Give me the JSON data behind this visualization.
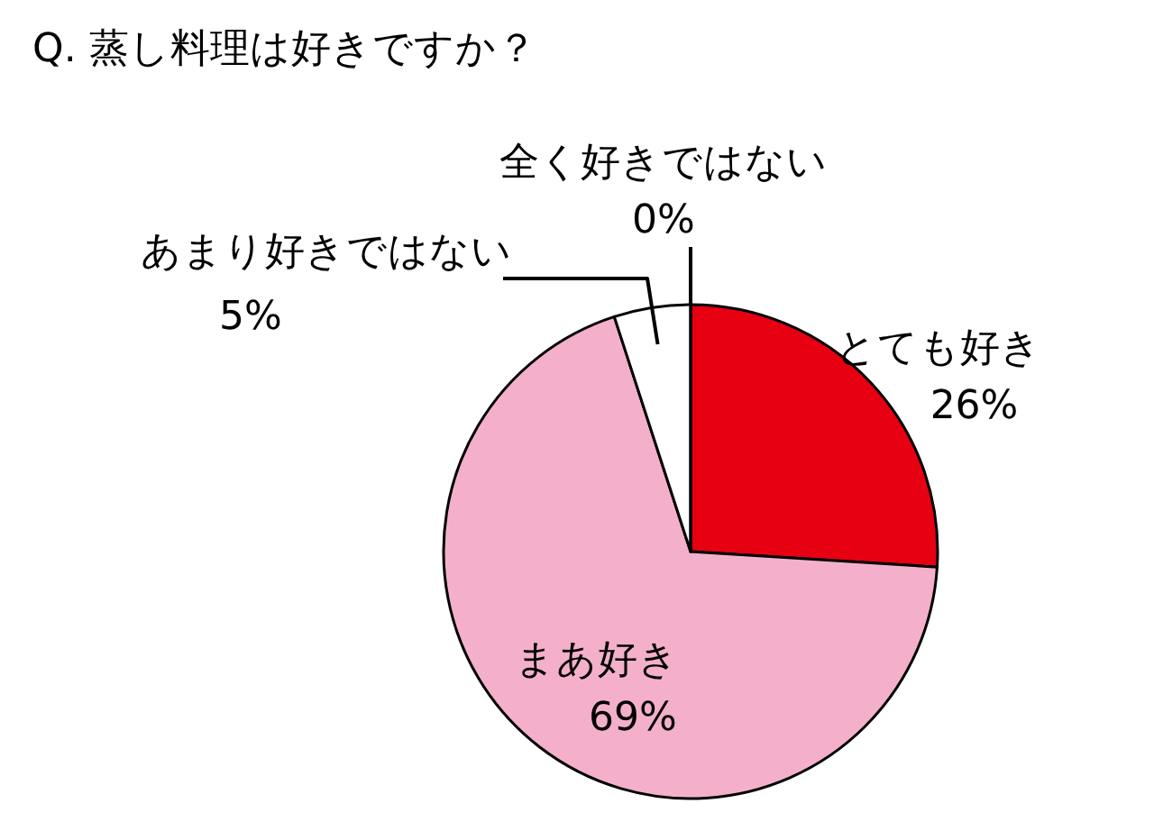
{
  "chart_data": {
    "type": "pie",
    "title": "Q. 蒸し料理は好きですか？",
    "categories": [
      "とても好き",
      "まあ好き",
      "あまり好きではない",
      "全く好きではない"
    ],
    "values": [
      26,
      69,
      5,
      0
    ],
    "colors": [
      "#e60012",
      "#f4b0cb",
      "#ffffff",
      "#ffffff"
    ],
    "value_labels": [
      "26%",
      "69%",
      "5%",
      "0%"
    ]
  }
}
